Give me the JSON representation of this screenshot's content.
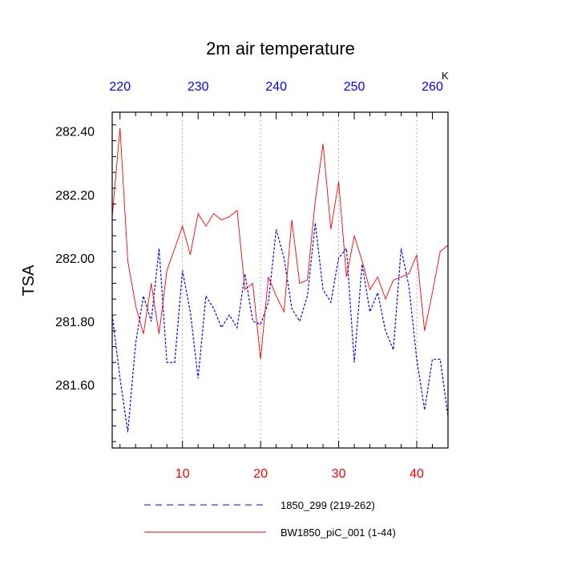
{
  "chart_data": {
    "type": "line",
    "title": "2m air temperature",
    "ylabel": "TSA",
    "xlabel": "",
    "bottom_axis": {
      "range": [
        1,
        44
      ],
      "ticks": [
        10,
        20,
        30,
        40
      ],
      "tick_color": "#ff0000"
    },
    "top_axis": {
      "range": [
        219,
        262
      ],
      "ticks": [
        220,
        230,
        240,
        250,
        260
      ],
      "tick_color": "#0000ff",
      "unit": "K"
    },
    "ylim": [
      281.4,
      282.46
    ],
    "y_ticks": [
      281.6,
      281.8,
      282.0,
      282.2,
      282.4
    ],
    "y_tick_labels": [
      "281.60",
      "281.80",
      "282.00",
      "282.20",
      "282.40"
    ],
    "grid": "vertical-dotted",
    "legend_position": "bottom",
    "series": [
      {
        "name": "1850_299 (219-262)",
        "color": "#0000ff",
        "style": "dashed",
        "x": [
          1,
          2,
          3,
          4,
          5,
          6,
          7,
          8,
          9,
          10,
          11,
          12,
          13,
          14,
          15,
          16,
          17,
          18,
          19,
          20,
          21,
          22,
          23,
          24,
          25,
          26,
          27,
          28,
          29,
          30,
          31,
          32,
          33,
          34,
          35,
          36,
          37,
          38,
          39,
          40,
          41,
          42,
          43,
          44
        ],
        "values": [
          281.82,
          281.62,
          281.45,
          281.73,
          281.88,
          281.8,
          282.03,
          281.67,
          281.67,
          281.96,
          281.83,
          281.62,
          281.88,
          281.84,
          281.78,
          281.82,
          281.78,
          281.95,
          281.8,
          281.79,
          281.86,
          282.09,
          282.0,
          281.84,
          281.8,
          281.88,
          282.11,
          281.9,
          281.86,
          282.0,
          282.03,
          281.67,
          281.98,
          281.83,
          281.89,
          281.77,
          281.71,
          282.03,
          281.91,
          281.68,
          281.52,
          281.68,
          281.68,
          281.5
        ]
      },
      {
        "name": "BW1850_piC_001 (1-44)",
        "color": "#ff0000",
        "style": "solid",
        "x": [
          1,
          2,
          3,
          4,
          5,
          6,
          7,
          8,
          9,
          10,
          11,
          12,
          13,
          14,
          15,
          16,
          17,
          18,
          19,
          20,
          21,
          22,
          23,
          24,
          25,
          26,
          27,
          28,
          29,
          30,
          31,
          32,
          33,
          34,
          35,
          36,
          37,
          38,
          39,
          40,
          41,
          42,
          43,
          44
        ],
        "values": [
          282.13,
          282.41,
          281.99,
          281.85,
          281.76,
          281.92,
          281.76,
          281.96,
          282.03,
          282.1,
          282.01,
          282.14,
          282.1,
          282.14,
          282.12,
          282.13,
          282.15,
          281.9,
          281.92,
          281.68,
          281.94,
          281.88,
          281.83,
          282.12,
          281.92,
          281.93,
          282.18,
          282.36,
          282.09,
          282.24,
          281.94,
          282.07,
          281.99,
          281.9,
          281.94,
          281.87,
          281.93,
          281.94,
          281.95,
          282.01,
          281.77,
          281.89,
          282.02,
          282.04
        ]
      }
    ]
  }
}
